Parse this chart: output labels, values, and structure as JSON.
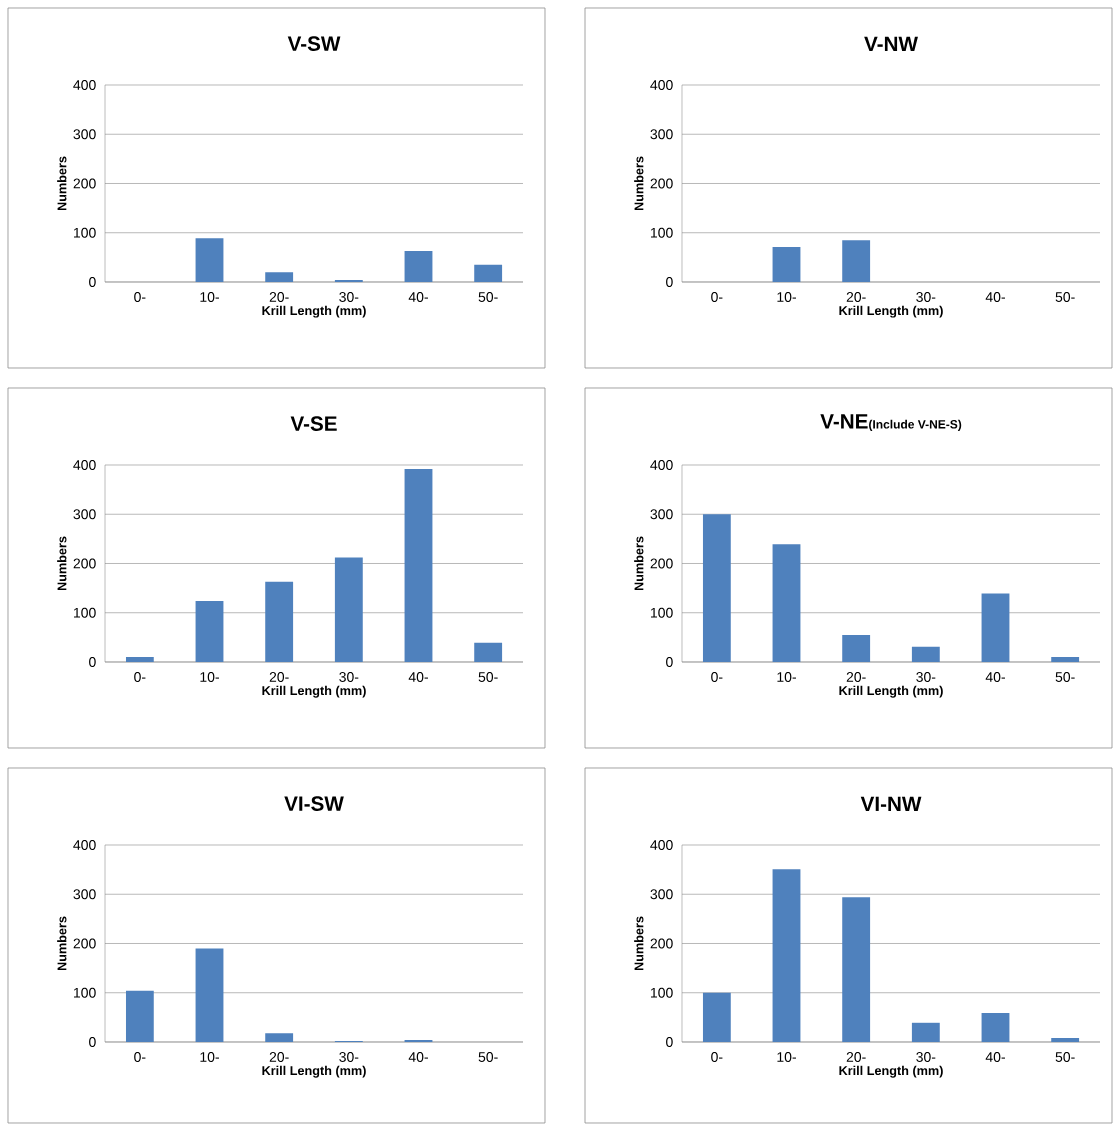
{
  "chart_data": [
    {
      "type": "bar",
      "title": "V-SW",
      "xlabel": "Krill Length (mm)",
      "ylabel": "Numbers",
      "categories": [
        "0-",
        "10-",
        "20-",
        "30-",
        "40-",
        "50-"
      ],
      "values": [
        0,
        89,
        20,
        4,
        63,
        35
      ],
      "color": "#4f81bd",
      "ylim": [
        0,
        400
      ],
      "yticks": [
        0,
        100,
        200,
        300,
        400
      ],
      "grid": "y"
    },
    {
      "type": "bar",
      "title": "V-NW",
      "xlabel": "Krill Length (mm)",
      "ylabel": "Numbers",
      "categories": [
        "0-",
        "10-",
        "20-",
        "30-",
        "40-",
        "50-"
      ],
      "values": [
        0,
        71,
        85,
        0,
        0,
        0
      ],
      "color": "#4f81bd",
      "ylim": [
        0,
        400
      ],
      "yticks": [
        0,
        100,
        200,
        300,
        400
      ],
      "grid": "y"
    },
    {
      "type": "bar",
      "title": "V-SE",
      "xlabel": "Krill Length (mm)",
      "ylabel": "Numbers",
      "categories": [
        "0-",
        "10-",
        "20-",
        "30-",
        "40-",
        "50-"
      ],
      "values": [
        10,
        124,
        163,
        212,
        392,
        39
      ],
      "color": "#4f81bd",
      "ylim": [
        0,
        400
      ],
      "yticks": [
        0,
        100,
        200,
        300,
        400
      ],
      "grid": "y"
    },
    {
      "type": "bar",
      "title": "V-NE",
      "subtitle": "(Include V-NE-S)",
      "xlabel": "Krill Length (mm)",
      "ylabel": "Numbers",
      "categories": [
        "0-",
        "10-",
        "20-",
        "30-",
        "40-",
        "50-"
      ],
      "values": [
        300,
        239,
        55,
        31,
        139,
        10
      ],
      "color": "#4f81bd",
      "ylim": [
        0,
        400
      ],
      "yticks": [
        0,
        100,
        200,
        300,
        400
      ],
      "grid": "y"
    },
    {
      "type": "bar",
      "title": "VI-SW",
      "xlabel": "Krill Length (mm)",
      "ylabel": "Numbers",
      "categories": [
        "0-",
        "10-",
        "20-",
        "30-",
        "40-",
        "50-"
      ],
      "values": [
        104,
        190,
        18,
        2,
        4,
        0
      ],
      "color": "#4f81bd",
      "ylim": [
        0,
        400
      ],
      "yticks": [
        0,
        100,
        200,
        300,
        400
      ],
      "grid": "y"
    },
    {
      "type": "bar",
      "title": "VI-NW",
      "xlabel": "Krill Length (mm)",
      "ylabel": "Numbers",
      "categories": [
        "0-",
        "10-",
        "20-",
        "30-",
        "40-",
        "50-"
      ],
      "values": [
        100,
        351,
        294,
        39,
        59,
        8
      ],
      "color": "#4f81bd",
      "ylim": [
        0,
        400
      ],
      "yticks": [
        0,
        100,
        200,
        300,
        400
      ],
      "grid": "y"
    }
  ]
}
